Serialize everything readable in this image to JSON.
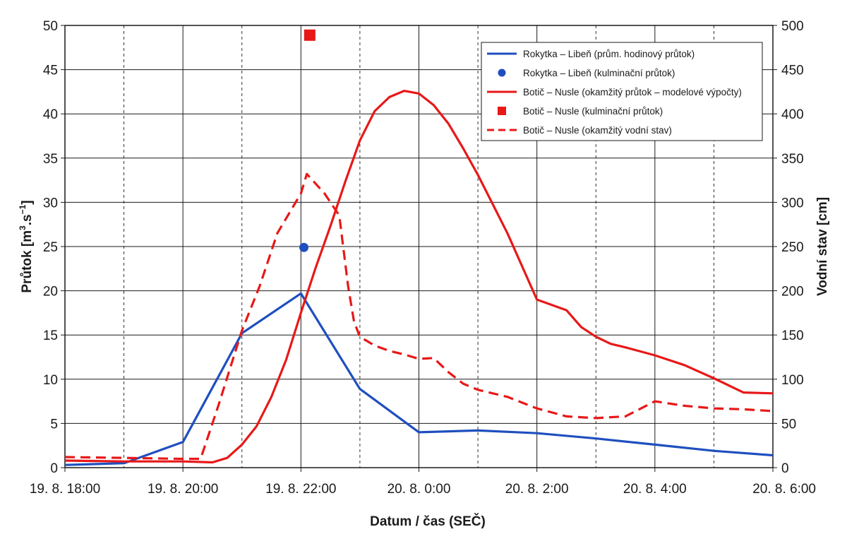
{
  "chart_data": {
    "type": "line",
    "xlabel": "Datum / čas (SEČ)",
    "ylabel_left_main": "Průtok [m",
    "ylabel_left_sup1": "3",
    "ylabel_left_mid": ".s",
    "ylabel_left_sup2": "−1",
    "ylabel_left_end": "]",
    "ylabel_right": "Vodní stav [cm]",
    "x_range_hours": [
      18,
      30
    ],
    "ylim_left": [
      0,
      50
    ],
    "ylim_right": [
      0,
      500
    ],
    "x_ticks": [
      {
        "hour": 18,
        "label": "19. 8. 18:00"
      },
      {
        "hour": 20,
        "label": "19. 8. 20:00"
      },
      {
        "hour": 22,
        "label": "19. 8. 22:00"
      },
      {
        "hour": 24,
        "label": "20. 8. 0:00"
      },
      {
        "hour": 26,
        "label": "20. 8. 2:00"
      },
      {
        "hour": 28,
        "label": "20. 8. 4:00"
      },
      {
        "hour": 30,
        "label": "20. 8. 6:00"
      }
    ],
    "y_ticks_left": [
      "0",
      "5",
      "10",
      "15",
      "20",
      "25",
      "30",
      "35",
      "40",
      "45",
      "50"
    ],
    "y_ticks_right": [
      "0",
      "50",
      "100",
      "150",
      "200",
      "250",
      "300",
      "350",
      "400",
      "450",
      "500"
    ],
    "grid": true,
    "legend_position": "top-right",
    "colors": {
      "blue": "#1f4fbf",
      "red": "#e81818"
    },
    "series": [
      {
        "name": "Rokytka – Libeň (prům. hodinový průtok)",
        "kind": "line",
        "axis": "left",
        "color": "#1f4fbf",
        "x": [
          18,
          19,
          20,
          21,
          22,
          23,
          24,
          25,
          26,
          27,
          28,
          29,
          30
        ],
        "y": [
          0.3,
          0.5,
          2.9,
          15.2,
          19.7,
          8.9,
          4.0,
          4.2,
          3.9,
          3.3,
          2.6,
          1.9,
          1.4
        ]
      },
      {
        "name": "Rokytka – Libeň (kulminační průtok)",
        "kind": "point",
        "axis": "left",
        "color": "#1f4fbf",
        "x": [
          22.05
        ],
        "y": [
          24.9
        ]
      },
      {
        "name": "Botič – Nusle (okamžitý průtok – modelové výpočty)",
        "kind": "line",
        "axis": "left",
        "color": "#e81818",
        "x": [
          18,
          19,
          20,
          20.5,
          20.75,
          21,
          21.25,
          21.5,
          21.75,
          22,
          22.25,
          22.5,
          22.75,
          23,
          23.25,
          23.5,
          23.75,
          24,
          24.25,
          24.5,
          24.75,
          25,
          25.5,
          26,
          26.5,
          26.75,
          27,
          27.25,
          27.5,
          28,
          28.5,
          29,
          29.5,
          30
        ],
        "y": [
          0.8,
          0.7,
          0.7,
          0.6,
          1.1,
          2.6,
          4.7,
          8.0,
          12.2,
          17.5,
          22.6,
          27.3,
          32.3,
          37.0,
          40.3,
          41.9,
          42.6,
          42.3,
          41.0,
          38.9,
          36.1,
          33.1,
          26.5,
          19.0,
          17.8,
          15.9,
          14.8,
          14.0,
          13.6,
          12.7,
          11.6,
          10.1,
          8.5,
          8.4
        ]
      },
      {
        "name": "Botič – Nusle (kulminační průtok)",
        "kind": "square",
        "axis": "left",
        "color": "#e81818",
        "x": [
          22.15
        ],
        "y": [
          48.9
        ]
      },
      {
        "name": "Botič – Nusle (okamžitý vodní stav)",
        "kind": "dashed",
        "axis": "right",
        "color": "#e81818",
        "x": [
          18,
          19,
          20,
          20.3,
          20.6,
          21,
          21.3,
          21.6,
          22,
          22.1,
          22.4,
          22.65,
          22.8,
          22.9,
          23,
          23.25,
          23.5,
          23.75,
          24,
          24.25,
          24.5,
          24.75,
          25,
          25.5,
          26,
          26.5,
          27,
          27.5,
          28,
          28.5,
          29,
          29.5,
          30
        ],
        "y": [
          12,
          11,
          10,
          10,
          70,
          155,
          205,
          265,
          310,
          332,
          310,
          285,
          205,
          165,
          148,
          138,
          132,
          128,
          123,
          124,
          108,
          95,
          88,
          80,
          67,
          58,
          56,
          58,
          75,
          70,
          67,
          66,
          64
        ]
      }
    ]
  }
}
